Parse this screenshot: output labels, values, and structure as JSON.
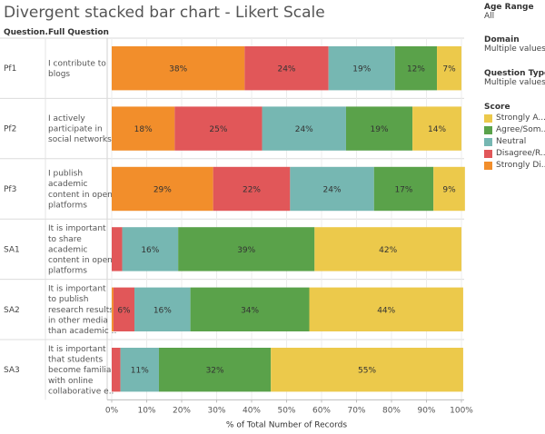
{
  "title": "Divergent stacked bar chart - Likert Scale",
  "columns": {
    "question": "Question..",
    "full_question": "Full Question"
  },
  "filters": [
    {
      "label": "Age Range",
      "value": "All"
    },
    {
      "label": "Domain",
      "value": "Multiple values"
    },
    {
      "label": "Question Type",
      "value": "Multiple values"
    }
  ],
  "legend": {
    "title": "Score",
    "items": [
      {
        "label": "Strongly A...",
        "color": "#ECC94B"
      },
      {
        "label": "Agree/Som...",
        "color": "#5AA24A"
      },
      {
        "label": "Neutral",
        "color": "#76B7B2"
      },
      {
        "label": "Disagree/R...",
        "color": "#E15759"
      },
      {
        "label": "Strongly Di...",
        "color": "#F28E2B"
      }
    ]
  },
  "chart_data": {
    "type": "bar",
    "stacked": true,
    "orientation": "horizontal",
    "xlabel": "% of Total Number of Records",
    "xlim": [
      0,
      100
    ],
    "xticks": [
      "0%",
      "10%",
      "20%",
      "30%",
      "40%",
      "50%",
      "60%",
      "70%",
      "80%",
      "90%",
      "100%"
    ],
    "rows": [
      {
        "code": "Pf1",
        "question": [
          "I contribute to",
          "blogs"
        ]
      },
      {
        "code": "Pf2",
        "question": [
          "I actively",
          "participate in",
          "social networks"
        ]
      },
      {
        "code": "Pf3",
        "question": [
          "I publish",
          "academic",
          "content in open",
          "platforms"
        ]
      },
      {
        "code": "SA1",
        "question": [
          "It is important",
          "to share",
          "academic",
          "content in open",
          "platforms"
        ]
      },
      {
        "code": "SA2",
        "question": [
          "It is important",
          "to publish",
          "research results",
          "in other media",
          "than academic .."
        ]
      },
      {
        "code": "SA3",
        "question": [
          "It is important",
          "that students",
          "become familiar",
          "with online",
          "collaborative e.."
        ]
      }
    ],
    "series": [
      {
        "name": "Strongly Di...",
        "color": "#F28E2B",
        "values": [
          38,
          18,
          29,
          0,
          0.5,
          0
        ]
      },
      {
        "name": "Disagree/R...",
        "color": "#E15759",
        "values": [
          24,
          25,
          22,
          3,
          6,
          2.5
        ]
      },
      {
        "name": "Neutral",
        "color": "#76B7B2",
        "values": [
          19,
          24,
          24,
          16,
          16,
          11
        ]
      },
      {
        "name": "Agree/Som...",
        "color": "#5AA24A",
        "values": [
          12,
          19,
          17,
          39,
          34,
          32
        ]
      },
      {
        "name": "Strongly A...",
        "color": "#ECC94B",
        "values": [
          7,
          14,
          9,
          42,
          44,
          55
        ]
      }
    ],
    "data_labels": [
      [
        "38%",
        "24%",
        "19%",
        "12%",
        "7%"
      ],
      [
        "18%",
        "25%",
        "24%",
        "19%",
        "14%"
      ],
      [
        "29%",
        "22%",
        "24%",
        "17%",
        "9%"
      ],
      [
        "",
        "",
        "16%",
        "39%",
        "42%"
      ],
      [
        "",
        "6%",
        "16%",
        "34%",
        "44%"
      ],
      [
        "",
        "",
        "11%",
        "32%",
        "55%"
      ]
    ]
  }
}
